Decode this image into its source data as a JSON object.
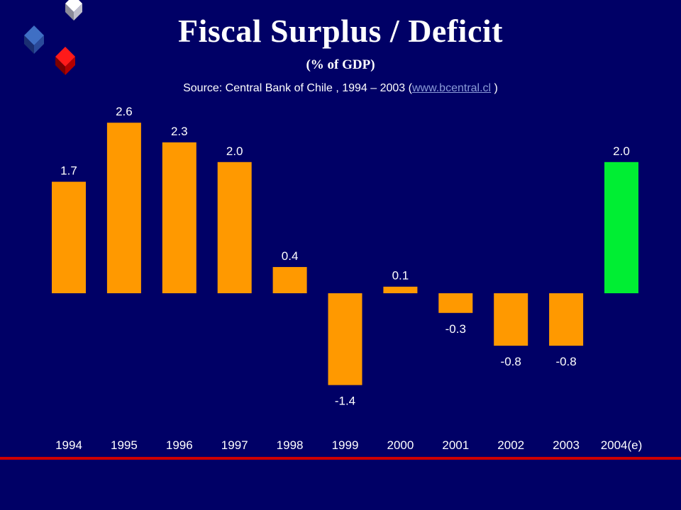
{
  "header": {
    "title": "Fiscal Surplus / Deficit",
    "subtitle": "(% of GDP)",
    "source_prefix": "Source: Central Bank of Chile , 1994 – 2003 (",
    "source_link": "www.bcentral.cl",
    "source_suffix": " )"
  },
  "chart_data": {
    "type": "bar",
    "categories": [
      "1994",
      "1995",
      "1996",
      "1997",
      "1998",
      "1999",
      "2000",
      "2001",
      "2002",
      "2003",
      "2004(e)"
    ],
    "values": [
      1.7,
      2.6,
      2.3,
      2.0,
      0.4,
      -1.4,
      0.1,
      -0.3,
      -0.8,
      -0.8,
      2.0
    ],
    "data_labels": [
      "1.7",
      "2.6",
      "2.3",
      "2.0",
      "0.4",
      "-1.4",
      "0.1",
      "-0.3",
      "-0.8",
      "-0.8",
      "2.0"
    ],
    "colors": [
      "#ff9900",
      "#ff9900",
      "#ff9900",
      "#ff9900",
      "#ff9900",
      "#ff9900",
      "#ff9900",
      "#ff9900",
      "#ff9900",
      "#ff9900",
      "#00ee33"
    ],
    "ylim": [
      -1.5,
      2.7
    ],
    "grid": false,
    "xlabel": "",
    "ylabel": ""
  }
}
